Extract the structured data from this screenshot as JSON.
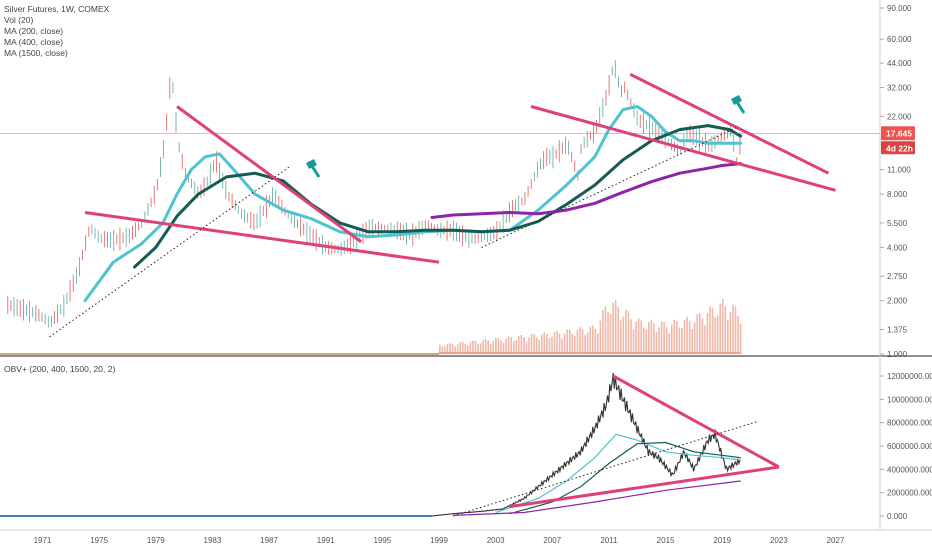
{
  "colors": {
    "candle_up": "#5aa89a",
    "candle_down": "#e05a5a",
    "ma200": "#4fc3d2",
    "ma400": "#145c52",
    "ma1500": "#8e24aa",
    "trendline": "#e0407a",
    "price_line": "#e05a5a",
    "badge": "#ef5350",
    "volume": "#f0b8a8",
    "obv": "#333333"
  },
  "top_legend": {
    "title": "Silver Futures, 1W, COMEX",
    "vol": "Vol (20)",
    "ma200": "MA (200, close)",
    "ma400": "MA (400, close)",
    "ma1500": "MA (1500, close)"
  },
  "bottom_legend": {
    "title": "OBV+ (200, 400, 1500, 20, 2)"
  },
  "badges": {
    "last_price": "17.645",
    "countdown": "4d 22h"
  },
  "chart_data": [
    {
      "type": "line",
      "title": "Silver Futures, 1W, COMEX",
      "x_ticks": [
        "1971",
        "1975",
        "1979",
        "1983",
        "1987",
        "1991",
        "1995",
        "1999",
        "2003",
        "2007",
        "2011",
        "2015",
        "2019",
        "2023",
        "2027"
      ],
      "y_ticks": [
        "90.000",
        "60.000",
        "44.000",
        "32.000",
        "22.000",
        "17.645",
        "11.000",
        "8.000",
        "5.500",
        "4.000",
        "2.750",
        "2.000",
        "1.375",
        "1.000"
      ],
      "scale": "log",
      "ylim": [
        1.0,
        90.0
      ],
      "xlim": [
        1968,
        2030
      ],
      "price": {
        "x": [
          1968.5,
          1969.5,
          1970.5,
          1971.5,
          1972.5,
          1973.5,
          1974.3,
          1975,
          1976,
          1977,
          1978,
          1979,
          1979.6,
          1980.05,
          1980.5,
          1981,
          1982,
          1982.6,
          1983.2,
          1984,
          1985,
          1986,
          1987.3,
          1988,
          1989,
          1990,
          1991,
          1992,
          1993,
          1994,
          1995,
          1996,
          1997,
          1998,
          1999,
          2000,
          2001,
          2002,
          2003,
          2004,
          2005,
          2006,
          2006.5,
          2007,
          2008,
          2008.8,
          2009,
          2010,
          2010.8,
          2011.3,
          2011.8,
          2012,
          2013,
          2013.5,
          2014,
          2015,
          2016,
          2016.5,
          2017,
          2018,
          2019,
          2019.6,
          2020,
          2020.3
        ],
        "values": [
          1.9,
          1.8,
          1.7,
          1.5,
          1.9,
          3.0,
          5.2,
          4.5,
          4.4,
          4.6,
          5.5,
          8.5,
          16.0,
          40.0,
          16.0,
          10.5,
          8.0,
          9.5,
          12.5,
          8.0,
          6.2,
          5.5,
          8.0,
          6.5,
          5.4,
          4.6,
          4.0,
          3.9,
          4.3,
          5.2,
          5.1,
          5.0,
          4.7,
          5.3,
          5.0,
          5.0,
          4.5,
          4.6,
          4.9,
          6.5,
          7.5,
          11.5,
          13.0,
          13.0,
          15.5,
          10.0,
          15.0,
          18.5,
          29.0,
          44.0,
          30.0,
          33.0,
          21.0,
          20.0,
          19.0,
          16.0,
          14.0,
          18.0,
          17.0,
          15.0,
          17.0,
          18.5,
          12.0,
          17.645
        ]
      },
      "series": [
        {
          "name": "MA (200, close)",
          "x": [
            1974,
            1976,
            1978,
            1979.5,
            1980.5,
            1981.5,
            1982.5,
            1983.5,
            1984.5,
            1986,
            1988,
            1990,
            1992,
            1994,
            1996,
            1998,
            2000,
            2002,
            2004,
            2006,
            2008,
            2010,
            2011,
            2012,
            2013,
            2014,
            2015,
            2016,
            2017,
            2018,
            2019,
            2020.3
          ],
          "values": [
            2.0,
            3.3,
            4.2,
            5.5,
            8.0,
            11.0,
            13.0,
            13.5,
            11.0,
            8.0,
            6.5,
            5.8,
            4.9,
            4.6,
            4.7,
            4.9,
            5.0,
            4.9,
            5.0,
            6.5,
            9.0,
            13.0,
            18.5,
            24.0,
            25.0,
            22.0,
            18.0,
            16.0,
            16.0,
            15.5,
            15.5,
            15.5
          ]
        },
        {
          "name": "MA (400, close)",
          "x": [
            1977.5,
            1979,
            1980.5,
            1982,
            1984,
            1986,
            1988,
            1990,
            1992,
            1994,
            1996,
            1998,
            2000,
            2002,
            2004,
            2006,
            2008,
            2010,
            2012,
            2014,
            2016,
            2018,
            2019.5,
            2020.3
          ],
          "values": [
            3.1,
            4.0,
            6.0,
            8.0,
            10.0,
            10.5,
            9.5,
            7.0,
            5.5,
            4.9,
            4.9,
            5.0,
            5.0,
            4.9,
            5.0,
            5.6,
            7.0,
            9.0,
            12.5,
            16.0,
            18.5,
            19.5,
            18.5,
            17.0
          ]
        },
        {
          "name": "MA (1500, close)",
          "x": [
            1998.5,
            2000,
            2002,
            2004,
            2006,
            2008,
            2010,
            2012,
            2014,
            2016,
            2018,
            2019,
            2020.3
          ],
          "values": [
            5.9,
            6.1,
            6.2,
            6.3,
            6.2,
            6.5,
            7.1,
            8.2,
            9.4,
            10.5,
            11.2,
            11.6,
            11.9
          ]
        }
      ],
      "trendlines": [
        {
          "kind": "solid",
          "x": [
            1980.5,
            1993.5
          ],
          "values": [
            25.0,
            4.3
          ]
        },
        {
          "kind": "solid",
          "x": [
            1974,
            1999
          ],
          "values": [
            6.3,
            3.3
          ]
        },
        {
          "kind": "dotted",
          "x": [
            1971.5,
            1988.5
          ],
          "values": [
            1.25,
            11.5
          ]
        },
        {
          "kind": "solid",
          "x": [
            2012.5,
            2026.5
          ],
          "values": [
            38.0,
            10.5
          ]
        },
        {
          "kind": "solid",
          "x": [
            2005.5,
            2027
          ],
          "values": [
            25.0,
            8.4
          ]
        },
        {
          "kind": "dotted",
          "x": [
            2002,
            2020
          ],
          "values": [
            4.0,
            19.0
          ]
        }
      ],
      "volume": {
        "x": [
          1999,
          2003,
          2007,
          2010,
          2011,
          2013,
          2015,
          2017,
          2019,
          2020.3
        ],
        "values": [
          0.15,
          0.25,
          0.35,
          0.45,
          0.9,
          0.55,
          0.5,
          0.6,
          0.85,
          0.7
        ]
      }
    },
    {
      "type": "line",
      "title": "OBV+ (200, 400, 1500, 20, 2)",
      "y_ticks": [
        "12000000.000",
        "10000000.000",
        "8000000.000",
        "6000000.000",
        "4000000.000",
        "2000000.000",
        "0.000"
      ],
      "ylim": [
        -500000,
        12500000
      ],
      "series": [
        {
          "name": "OBV",
          "x": [
            1968.5,
            1998.5,
            2000,
            2002,
            2003.5,
            2005,
            2006.5,
            2008,
            2009,
            2010,
            2010.8,
            2011.3,
            2012,
            2013,
            2013.8,
            2014.5,
            2015.5,
            2016.3,
            2017,
            2018,
            2018.5,
            2019.3,
            2020.3
          ],
          "values": [
            0,
            0,
            200000,
            400000,
            600000,
            1500000,
            3000000,
            4500000,
            5500000,
            7500000,
            9500000,
            11800000,
            10000000,
            7500000,
            5500000,
            5000000,
            3500000,
            5500000,
            4000000,
            6500000,
            7000000,
            4000000,
            4800000
          ]
        },
        {
          "name": "OBV MA 200",
          "x": [
            2003,
            2006,
            2008,
            2010,
            2011.5,
            2013,
            2015,
            2017,
            2019,
            2020.3
          ],
          "values": [
            300000,
            1500000,
            3000000,
            5000000,
            7000000,
            6500000,
            5500000,
            5200000,
            5000000,
            4800000
          ]
        },
        {
          "name": "OBV MA 400",
          "x": [
            2004,
            2007,
            2009,
            2011,
            2013,
            2015,
            2017,
            2019,
            2020.3
          ],
          "values": [
            200000,
            1200000,
            2500000,
            4500000,
            6200000,
            6300000,
            5500000,
            5200000,
            5000000
          ]
        },
        {
          "name": "OBV MA 1500",
          "x": [
            2000,
            2005,
            2010,
            2015,
            2020.3
          ],
          "values": [
            50000,
            300000,
            1200000,
            2200000,
            3000000
          ]
        }
      ],
      "trendlines": [
        {
          "kind": "solid",
          "x": [
            2011.3,
            2023
          ],
          "values": [
            12000000,
            4200000
          ]
        },
        {
          "kind": "solid",
          "x": [
            2004,
            2023
          ],
          "values": [
            800000,
            4200000
          ]
        },
        {
          "kind": "dotted",
          "x": [
            2000,
            2021.5
          ],
          "values": [
            0,
            8100000
          ]
        }
      ]
    }
  ]
}
